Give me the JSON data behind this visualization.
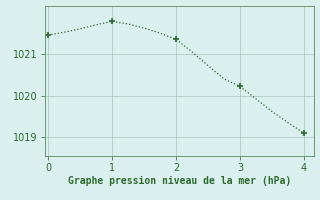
{
  "x": [
    0,
    0.25,
    0.5,
    0.75,
    1.0,
    1.25,
    1.5,
    1.75,
    2.0,
    2.25,
    2.5,
    2.75,
    3.0,
    3.25,
    3.5,
    3.75,
    4.0
  ],
  "y": [
    1021.45,
    1021.52,
    1021.6,
    1021.7,
    1021.78,
    1021.72,
    1021.62,
    1021.5,
    1021.35,
    1021.05,
    1020.72,
    1020.4,
    1020.22,
    1019.92,
    1019.62,
    1019.35,
    1019.1
  ],
  "marker_x": [
    0,
    1.0,
    2.0,
    3.0,
    4.0
  ],
  "marker_y": [
    1021.45,
    1021.78,
    1021.35,
    1020.22,
    1019.1
  ],
  "line_color": "#2d6a2d",
  "marker_color": "#2d6a2d",
  "bg_color": "#daf0ee",
  "grid_color": "#9abaaa",
  "xlabel": "Graphe pression niveau de la mer (hPa)",
  "xlabel_color": "#2d6a2d",
  "tick_color": "#2d6a2d",
  "spine_color": "#5a8a5a",
  "xlim": [
    -0.05,
    4.15
  ],
  "ylim": [
    1018.55,
    1022.15
  ],
  "yticks": [
    1019,
    1020,
    1021
  ],
  "xticks": [
    0,
    1,
    2,
    3,
    4
  ]
}
